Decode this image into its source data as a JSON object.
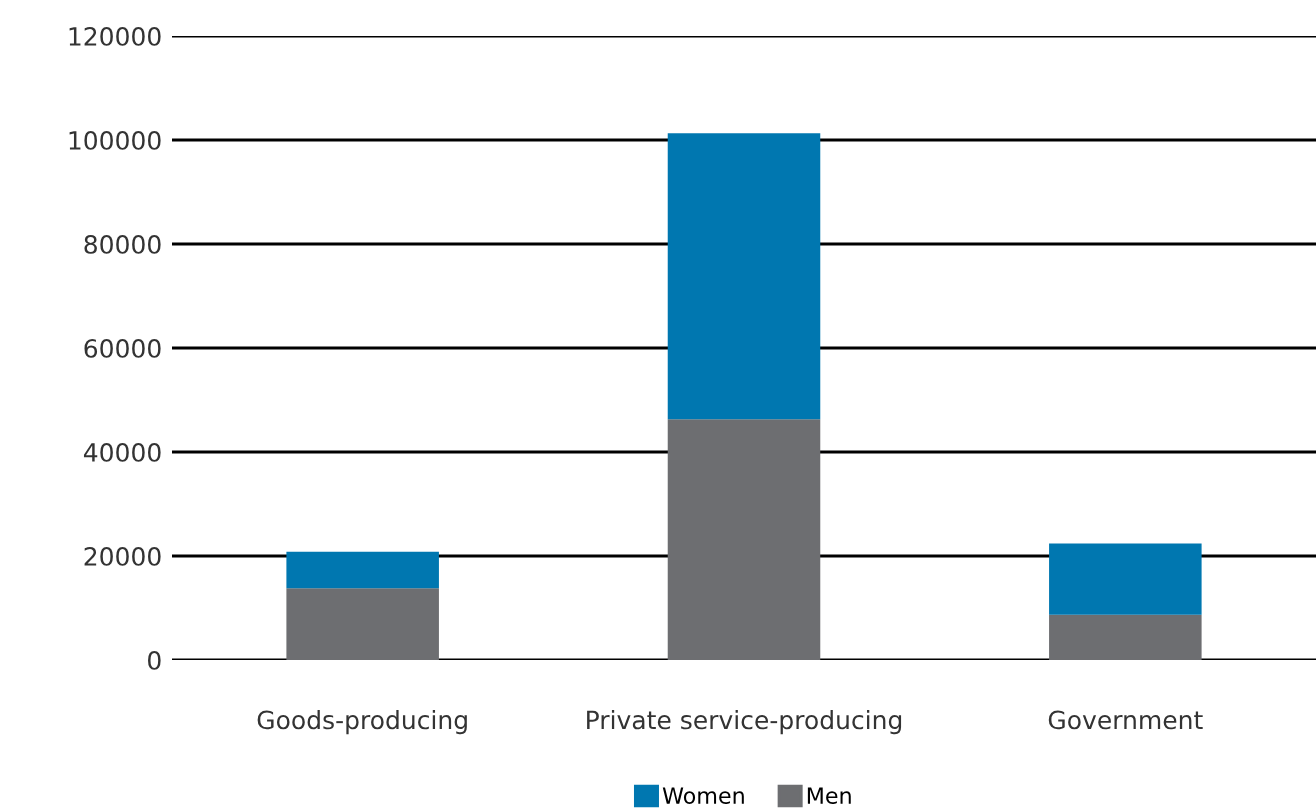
{
  "chart_data": {
    "type": "bar",
    "stacked": true,
    "categories": [
      "Goods-producing",
      "Private service-producing",
      "Government"
    ],
    "series": [
      {
        "name": "Men",
        "color": "#6d6e71",
        "values": [
          13800,
          46300,
          8700
        ]
      },
      {
        "name": "Women",
        "color": "#0077b0",
        "values": [
          7000,
          55000,
          13700
        ]
      }
    ],
    "ylim": [
      0,
      120000
    ],
    "yticks": [
      0,
      20000,
      40000,
      60000,
      80000,
      100000,
      120000
    ],
    "grid": "y",
    "legend": "bottom"
  }
}
